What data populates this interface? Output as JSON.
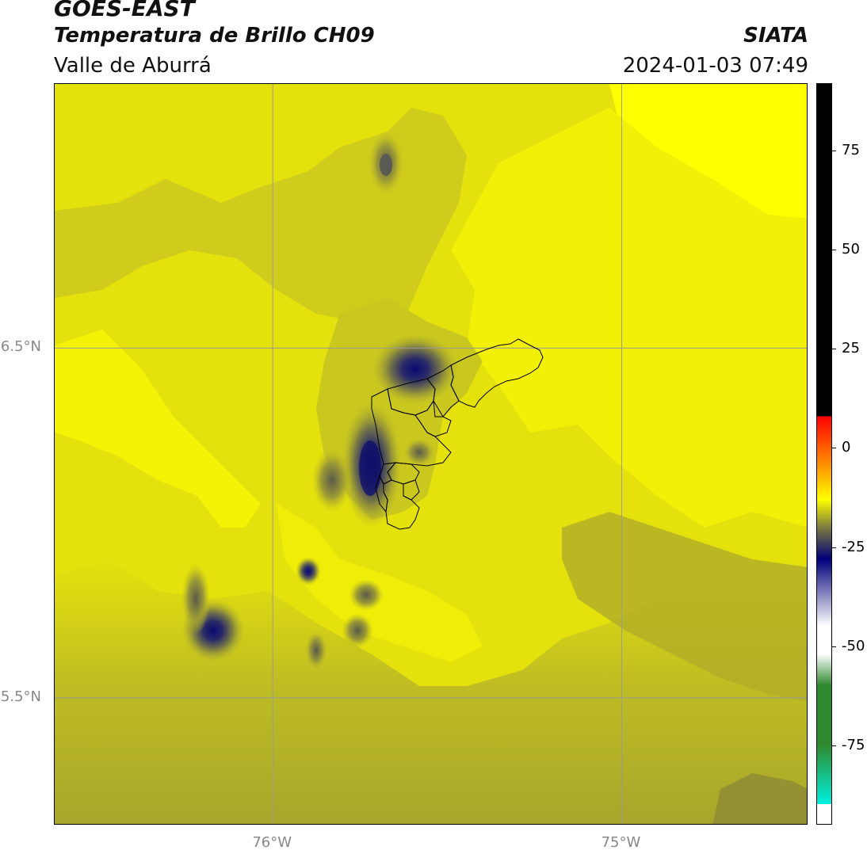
{
  "header": {
    "satellite": "GOES-EAST",
    "product": "Temperatura de Brillo CH09",
    "region": "Valle de Aburrá",
    "organization": "SIATA",
    "timestamp": "2024-01-03 07:49"
  },
  "map": {
    "lat_labels": [
      "6.5°N",
      "5.5°N"
    ],
    "lon_labels": [
      "76°W",
      "75°W"
    ],
    "lon_range": [
      -76.625,
      -74.465
    ],
    "lat_range": [
      5.135,
      7.255
    ],
    "gridlines": {
      "lons": [
        -76.0,
        -75.0
      ],
      "lats": [
        6.5,
        5.5
      ]
    }
  },
  "colorbar": {
    "range": [
      -95,
      92
    ],
    "ticks": [
      75,
      50,
      25,
      0,
      -25,
      -50,
      -75
    ],
    "tick_labels": [
      "75",
      "50",
      "25",
      "0",
      "-25",
      "-50",
      "-75"
    ],
    "colors": {
      "black": "#000000",
      "red": "#ff0000",
      "orange": "#ff9900",
      "yellow": "#ffff00",
      "olive": "#7d7b3c",
      "navy": "#00007a",
      "white": "#ffffff",
      "green": "#2f8a2f",
      "cyan": "#00f0e0"
    }
  }
}
